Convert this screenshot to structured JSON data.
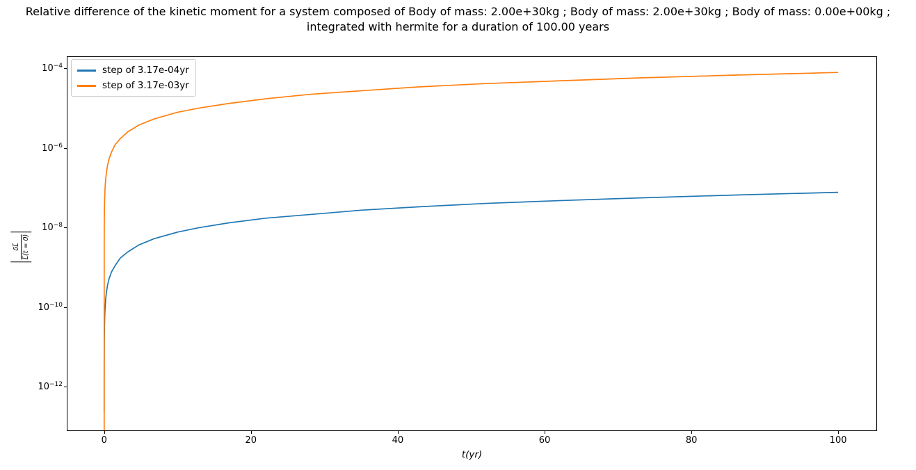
{
  "chart_data": {
    "type": "line",
    "title": "Relative difference of the kinetic moment for a system composed of Body of mass: 2.00e+30kg ; Body of mass: 2.00e+30kg ; Body of mass: 0.00e+00kg ; integrated with hermite for a duration of 100.00 years",
    "title_line1": "Relative difference of the kinetic moment for a system composed of Body of mass: 2.00e+30kg ; Body of mass: 2.00e+30kg ; Body of mass: 0.00e+00kg ;",
    "title_line2": "integrated with hermite for a duration of 100.00 years",
    "xlabel": "t(yr)",
    "ylabel": "|δL⃗ / L⃗(t = 0)|",
    "ylabel_numerator": "δL⃗",
    "ylabel_denominator": "L⃗(t = 0)",
    "grid": false,
    "legend_position": "upper left",
    "x_axis": {
      "scale": "linear",
      "lim": [
        -5.0,
        105.2
      ],
      "ticks": [
        0,
        20,
        40,
        60,
        80,
        100
      ]
    },
    "y_axis": {
      "scale": "log",
      "lim_log10": [
        -13.1,
        -3.72
      ],
      "tick_exponents": [
        -4,
        -6,
        -8,
        -10,
        -12
      ]
    },
    "series": [
      {
        "name": "step of 3.17e-04yr",
        "color": "#1f77b4",
        "x": [
          0.000317,
          0.001,
          0.002,
          0.00317,
          0.005,
          0.01,
          0.02,
          0.04,
          0.07,
          0.1,
          0.15,
          0.22,
          0.32,
          0.47,
          0.68,
          1,
          1.5,
          2.2,
          3.2,
          4.7,
          6.8,
          10,
          13,
          17,
          22,
          28,
          35,
          43,
          52,
          62,
          73,
          86,
          100
        ],
        "y": [
          2.4e-13,
          7.6e-13,
          1.5e-12,
          2.4e-12,
          3.8e-12,
          7.6e-12,
          1.5e-11,
          3e-11,
          5.3e-11,
          7.6e-11,
          1.1e-10,
          1.7e-10,
          2.4e-10,
          3.6e-10,
          5.2e-10,
          7.6e-10,
          1.1e-09,
          1.7e-09,
          2.4e-09,
          3.6e-09,
          5.2e-09,
          7.6e-09,
          9.9e-09,
          1.3e-08,
          1.7e-08,
          2.1e-08,
          2.7e-08,
          3.3e-08,
          4e-08,
          4.7e-08,
          5.5e-08,
          6.5e-08,
          7.6e-08
        ]
      },
      {
        "name": "step of 3.17e-03yr",
        "color": "#ff7f0e",
        "x": [
          0.00317,
          0.005,
          0.01,
          0.02,
          0.04,
          0.07,
          0.1,
          0.15,
          0.22,
          0.32,
          0.47,
          0.68,
          1,
          1.5,
          2.2,
          3.2,
          4.7,
          6.8,
          10,
          13,
          17,
          22,
          28,
          35,
          43,
          52,
          62,
          73,
          86,
          100
        ],
        "y": [
          5e-14,
          3.9e-09,
          7.8e-09,
          1.6e-08,
          3.1e-08,
          5.5e-08,
          7.8e-08,
          1.2e-07,
          1.7e-07,
          2.5e-07,
          3.7e-07,
          5.3e-07,
          7.8e-07,
          1.2e-06,
          1.7e-06,
          2.5e-06,
          3.7e-06,
          5.3e-06,
          7.8e-06,
          1e-05,
          1.3e-05,
          1.7e-05,
          2.2e-05,
          2.7e-05,
          3.4e-05,
          4.1e-05,
          4.8e-05,
          5.7e-05,
          6.7e-05,
          7.8e-05
        ]
      }
    ]
  }
}
